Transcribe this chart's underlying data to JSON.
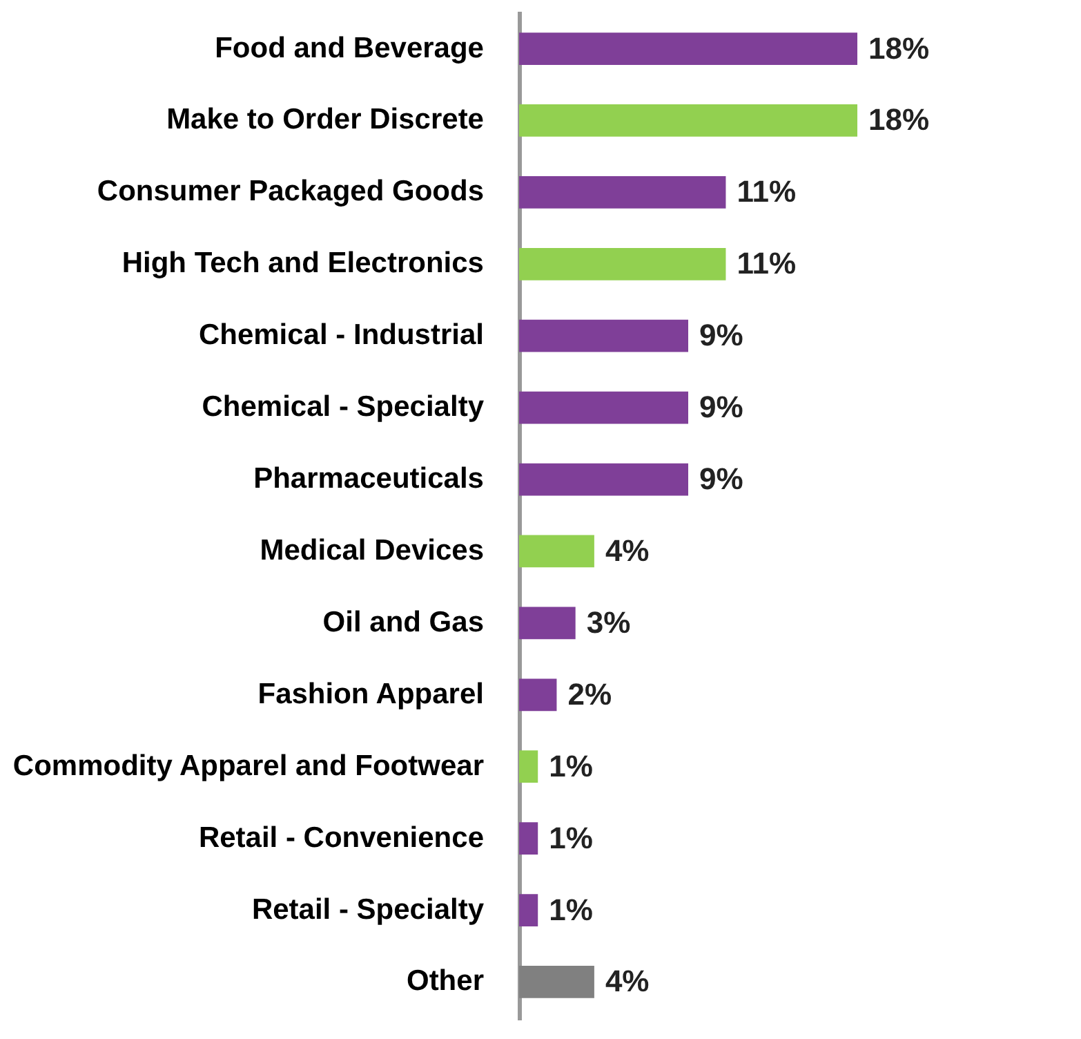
{
  "chart_data": {
    "type": "bar",
    "orientation": "horizontal",
    "categories": [
      "Food and Beverage",
      "Make to Order Discrete",
      "Consumer Packaged Goods",
      "High Tech and Electronics",
      "Chemical - Industrial",
      "Chemical - Specialty",
      "Pharmaceuticals",
      "Medical Devices",
      "Oil and Gas",
      "Fashion Apparel",
      "Commodity Apparel and Footwear",
      "Retail - Convenience",
      "Retail - Specialty",
      "Other"
    ],
    "values": [
      18,
      18,
      11,
      11,
      9,
      9,
      9,
      4,
      3,
      2,
      1,
      1,
      1,
      4
    ],
    "value_labels": [
      "18%",
      "18%",
      "11%",
      "11%",
      "9%",
      "9%",
      "9%",
      "4%",
      "3%",
      "2%",
      "1%",
      "1%",
      "1%",
      "4%"
    ],
    "colors": [
      "#7f3f98",
      "#92d050",
      "#7f3f98",
      "#92d050",
      "#7f3f98",
      "#7f3f98",
      "#7f3f98",
      "#92d050",
      "#7f3f98",
      "#7f3f98",
      "#92d050",
      "#7f3f98",
      "#7f3f98",
      "#808080"
    ]
  }
}
